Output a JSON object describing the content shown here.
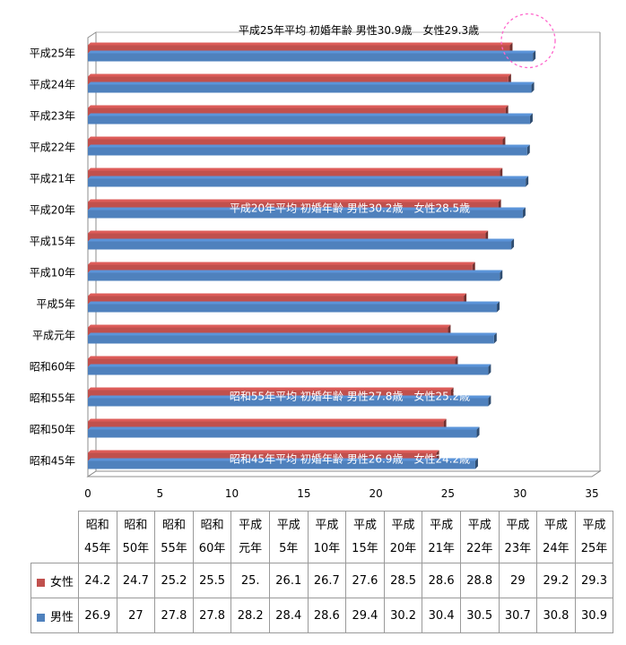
{
  "chart_data": {
    "type": "bar",
    "orientation": "horizontal",
    "categories": [
      "昭和45年",
      "昭和50年",
      "昭和55年",
      "昭和60年",
      "平成元年",
      "平成5年",
      "平成10年",
      "平成15年",
      "平成20年",
      "平成21年",
      "平成22年",
      "平成23年",
      "平成24年",
      "平成25年"
    ],
    "table_headers": [
      [
        "昭和",
        "45年"
      ],
      [
        "昭和",
        "50年"
      ],
      [
        "昭和",
        "55年"
      ],
      [
        "昭和",
        "60年"
      ],
      [
        "平成",
        "元年"
      ],
      [
        "平成",
        "5年"
      ],
      [
        "平成",
        "10年"
      ],
      [
        "平成",
        "15年"
      ],
      [
        "平成",
        "20年"
      ],
      [
        "平成",
        "21年"
      ],
      [
        "平成",
        "22年"
      ],
      [
        "平成",
        "23年"
      ],
      [
        "平成",
        "24年"
      ],
      [
        "平成",
        "25年"
      ]
    ],
    "series": [
      {
        "name": "女性",
        "color": "#c0504d",
        "values": [
          24.2,
          24.7,
          25.2,
          25.5,
          25.0,
          26.1,
          26.7,
          27.6,
          28.5,
          28.6,
          28.8,
          29,
          29.2,
          29.3
        ],
        "table_values": [
          "24.2",
          "24.7",
          "25.2",
          "25.5",
          "25.",
          "26.1",
          "26.7",
          "27.6",
          "28.5",
          "28.6",
          "28.8",
          "29",
          "29.2",
          "29.3"
        ]
      },
      {
        "name": "男性",
        "color": "#4f81bd",
        "values": [
          26.9,
          27,
          27.8,
          27.8,
          28.2,
          28.4,
          28.6,
          29.4,
          30.2,
          30.4,
          30.5,
          30.7,
          30.8,
          30.9
        ],
        "table_values": [
          "26.9",
          "27",
          "27.8",
          "27.8",
          "28.2",
          "28.4",
          "28.6",
          "29.4",
          "30.2",
          "30.4",
          "30.5",
          "30.7",
          "30.8",
          "30.9"
        ]
      }
    ],
    "xlim": [
      0,
      35
    ],
    "xticks": [
      0,
      5,
      10,
      15,
      20,
      25,
      30,
      35
    ],
    "grid": false,
    "legend": "data-table",
    "annotations": [
      {
        "category": "平成25年",
        "text": "平成25年平均 初婚年齢 男性30.9歳　女性29.3歳",
        "color": "#000000"
      },
      {
        "category": "平成20年",
        "text": "平成20年平均 初婚年齢 男性30.2歳　女性28.5歳",
        "color": "#ffffff"
      },
      {
        "category": "昭和55年",
        "text": "昭和55年平均 初婚年齢 男性27.8歳　女性25.2歳",
        "color": "#ffffff"
      },
      {
        "category": "昭和45年",
        "text": "昭和45年平均 初婚年齢 男性26.9歳　女性24.2歳",
        "color": "#ffffff"
      }
    ],
    "highlight": {
      "category": "平成25年",
      "style": "dashed-circle",
      "color": "#ff66cc"
    }
  }
}
